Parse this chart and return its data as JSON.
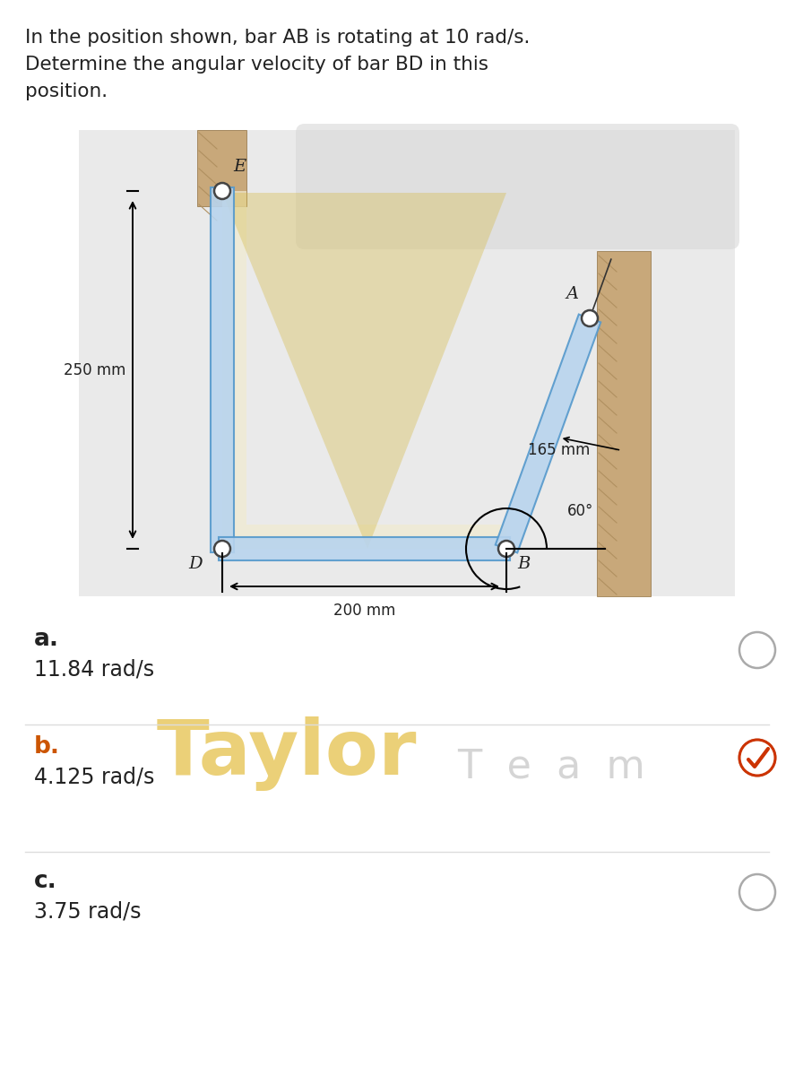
{
  "title_line1": "In the position shown, bar AB is rotating at 10 rad/s.",
  "title_line2": "Determine the angular velocity of bar BD in this",
  "title_line3": "position.",
  "bg_color": "#ffffff",
  "diag_bg": "#e8e8e8",
  "diag_cream": "#f0ead0",
  "bar_fill": "#b8d4ee",
  "bar_edge": "#5599cc",
  "wall_fill": "#c8a87a",
  "wall_hatch": "#b09060",
  "pin_fill": "#ffffff",
  "pin_edge": "#444444",
  "triangle_fill": "#e8d880",
  "triangle_alpha": 0.45,
  "watermark1": "Taylor",
  "watermark2": "T  e  a  m",
  "wm_color1": "#e8c860",
  "wm_color2": "#c8c8c8",
  "label_E": "E",
  "label_A": "A",
  "label_D": "D",
  "label_B": "B",
  "dim_250": "250 mm",
  "dim_165": "165 mm",
  "dim_200": "200 mm",
  "angle_label": "60°",
  "opt_a_letter": "a.",
  "opt_a_val": "11.84 rad/s",
  "opt_b_letter": "b.",
  "opt_b_val": "4.125 rad/s",
  "opt_c_letter": "c.",
  "opt_c_val": "3.75 rad/s",
  "color_normal": "#222222",
  "color_selected": "#cc5500",
  "radio_edge": "#aaaaaa",
  "check_color": "#cc3300"
}
